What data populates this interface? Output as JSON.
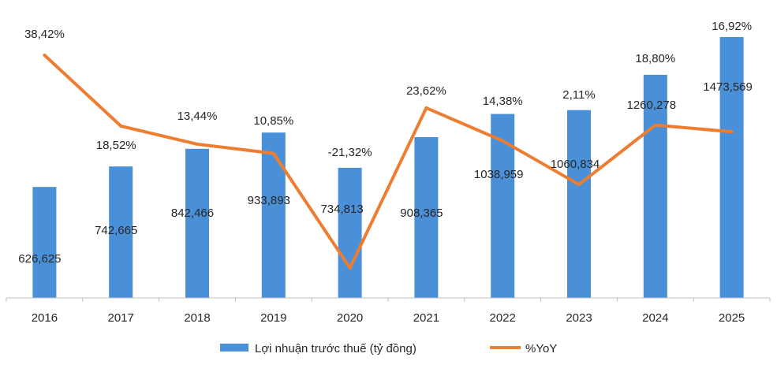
{
  "chart_data": {
    "type": "bar",
    "title": "",
    "xlabel": "",
    "ylabel": "",
    "categories": [
      "2016",
      "2017",
      "2018",
      "2019",
      "2020",
      "2021",
      "2022",
      "2023",
      "2024",
      "2025"
    ],
    "series": [
      {
        "name": "Lợi nhuận trước thuế (tỷ đồng)",
        "type": "bar",
        "color": "#4a90d9",
        "values": [
          626625,
          742665,
          842466,
          933893,
          734813,
          908365,
          1038959,
          1060834,
          1260278,
          1473569
        ],
        "labels": [
          "626,625",
          "742,665",
          "842,466",
          "933,893",
          "734,813",
          "908,365",
          "1038,959",
          "1060,834",
          "1260,278",
          "1473,569"
        ]
      },
      {
        "name": "%YoY",
        "type": "line",
        "color": "#ed7d31",
        "values": [
          38.42,
          18.52,
          13.44,
          10.85,
          -21.32,
          23.62,
          14.38,
          2.11,
          18.8,
          16.92
        ],
        "labels": [
          "38,42%",
          "18,52%",
          "13,44%",
          "10,85%",
          "-21,32%",
          "23,62%",
          "14,38%",
          "2,11%",
          "18,80%",
          "16,92%"
        ]
      }
    ],
    "ylim_bars": [
      0,
      1600000
    ],
    "ylim_line": [
      -30,
      50
    ],
    "grid": false,
    "legend_position": "bottom-center"
  }
}
